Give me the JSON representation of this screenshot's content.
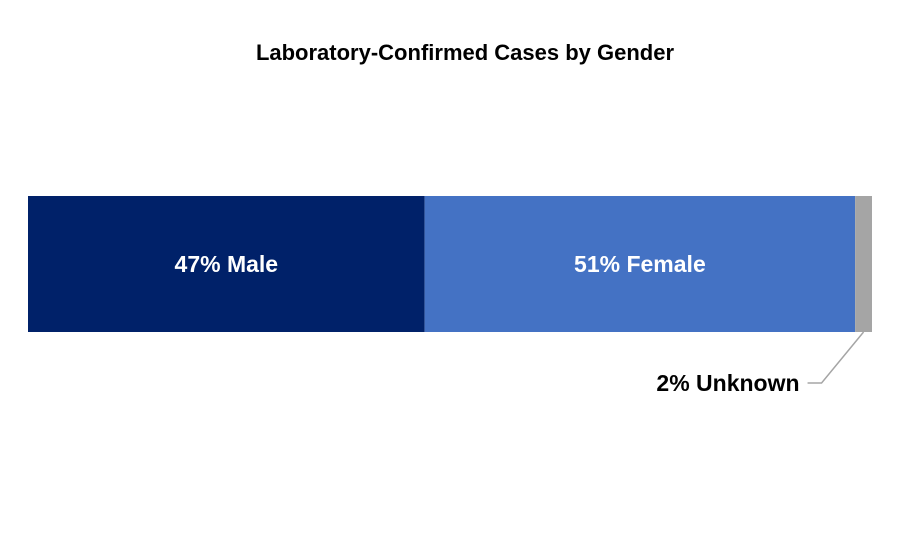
{
  "chart_data": {
    "type": "bar",
    "orientation": "horizontal",
    "stacked": true,
    "title": "Laboratory-Confirmed Cases by Gender",
    "xlabel": "",
    "ylabel": "",
    "xlim": [
      0,
      100
    ],
    "grid": false,
    "legend": "none",
    "series": [
      {
        "name": "Male",
        "value": 47,
        "label": "47% Male",
        "color": "#002169",
        "label_position": "inside"
      },
      {
        "name": "Female",
        "value": 51,
        "label": "51% Female",
        "color": "#4472C4",
        "label_position": "inside"
      },
      {
        "name": "Unknown",
        "value": 2,
        "label": "2% Unknown",
        "color": "#A5A5A5",
        "label_position": "callout"
      }
    ]
  }
}
